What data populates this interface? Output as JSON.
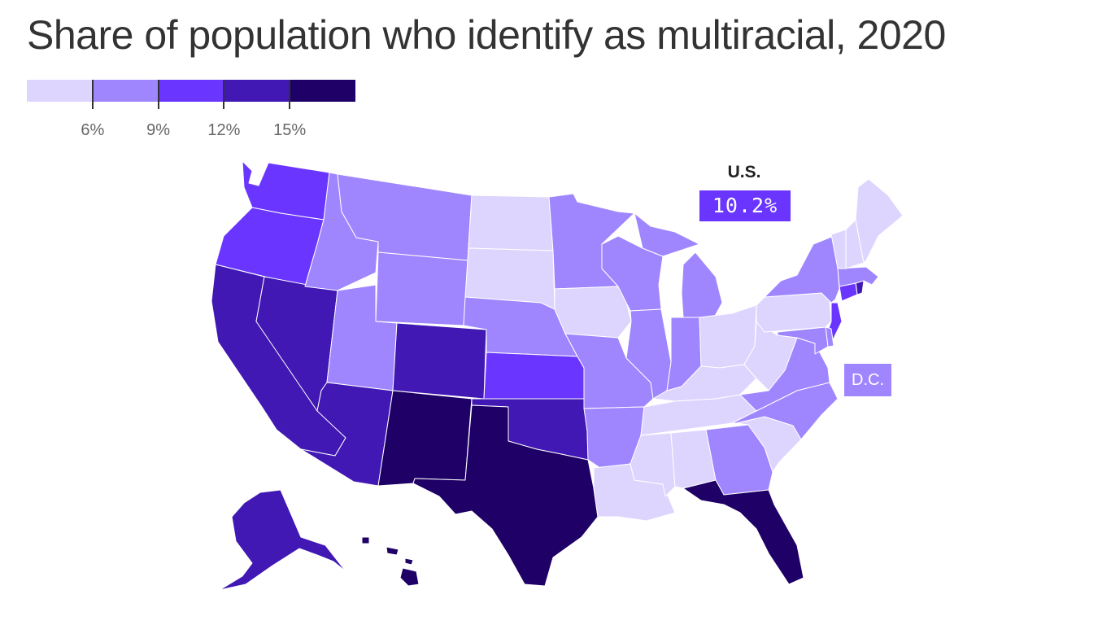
{
  "title": "Share of population who identify as multiracial, 2020",
  "legend": {
    "bins": [
      {
        "min": 3,
        "max": 6,
        "color": "#ded5ff"
      },
      {
        "min": 6,
        "max": 9,
        "color": "#9f86ff"
      },
      {
        "min": 9,
        "max": 12,
        "color": "#6a36ff"
      },
      {
        "min": 12,
        "max": 15,
        "color": "#4118b3"
      },
      {
        "min": 15,
        "max": 18,
        "color": "#1e0067"
      }
    ],
    "ticks": [
      {
        "value": 6,
        "label": "6%"
      },
      {
        "value": 9,
        "label": "9%"
      },
      {
        "value": 12,
        "label": "12%"
      },
      {
        "value": 15,
        "label": "15%"
      }
    ]
  },
  "us_label": "U.S.",
  "us_value": "10.2%",
  "us_color": "#6a36ff",
  "dc_label": "D.C.",
  "dc_color": "#9f86ff",
  "colors": {
    "c1": "#ded5ff",
    "c2": "#9f86ff",
    "c3": "#6a36ff",
    "c4": "#4118b3",
    "c5": "#1e0067"
  },
  "states": {
    "WA": "c3",
    "OR": "c3",
    "CA": "c4",
    "NV": "c4",
    "ID": "c2",
    "MT": "c2",
    "WY": "c2",
    "UT": "c2",
    "AZ": "c4",
    "CO": "c4",
    "NM": "c5",
    "ND": "c1",
    "SD": "c1",
    "NE": "c2",
    "KS": "c3",
    "OK": "c4",
    "TX": "c5",
    "MN": "c2",
    "IA": "c1",
    "MO": "c2",
    "AR": "c2",
    "LA": "c1",
    "WI": "c2",
    "IL": "c2",
    "MI": "c2",
    "IN": "c2",
    "OH": "c1",
    "KY": "c1",
    "TN": "c1",
    "MS": "c1",
    "AL": "c1",
    "GA": "c2",
    "FL": "c5",
    "SC": "c1",
    "NC": "c2",
    "VA": "c2",
    "WV": "c1",
    "PA": "c1",
    "NY": "c2",
    "NJ": "c3",
    "DE": "c2",
    "MD": "c2",
    "CT": "c3",
    "RI": "c4",
    "MA": "c2",
    "VT": "c1",
    "NH": "c1",
    "ME": "c1",
    "AK": "c4",
    "HI": "c5"
  }
}
